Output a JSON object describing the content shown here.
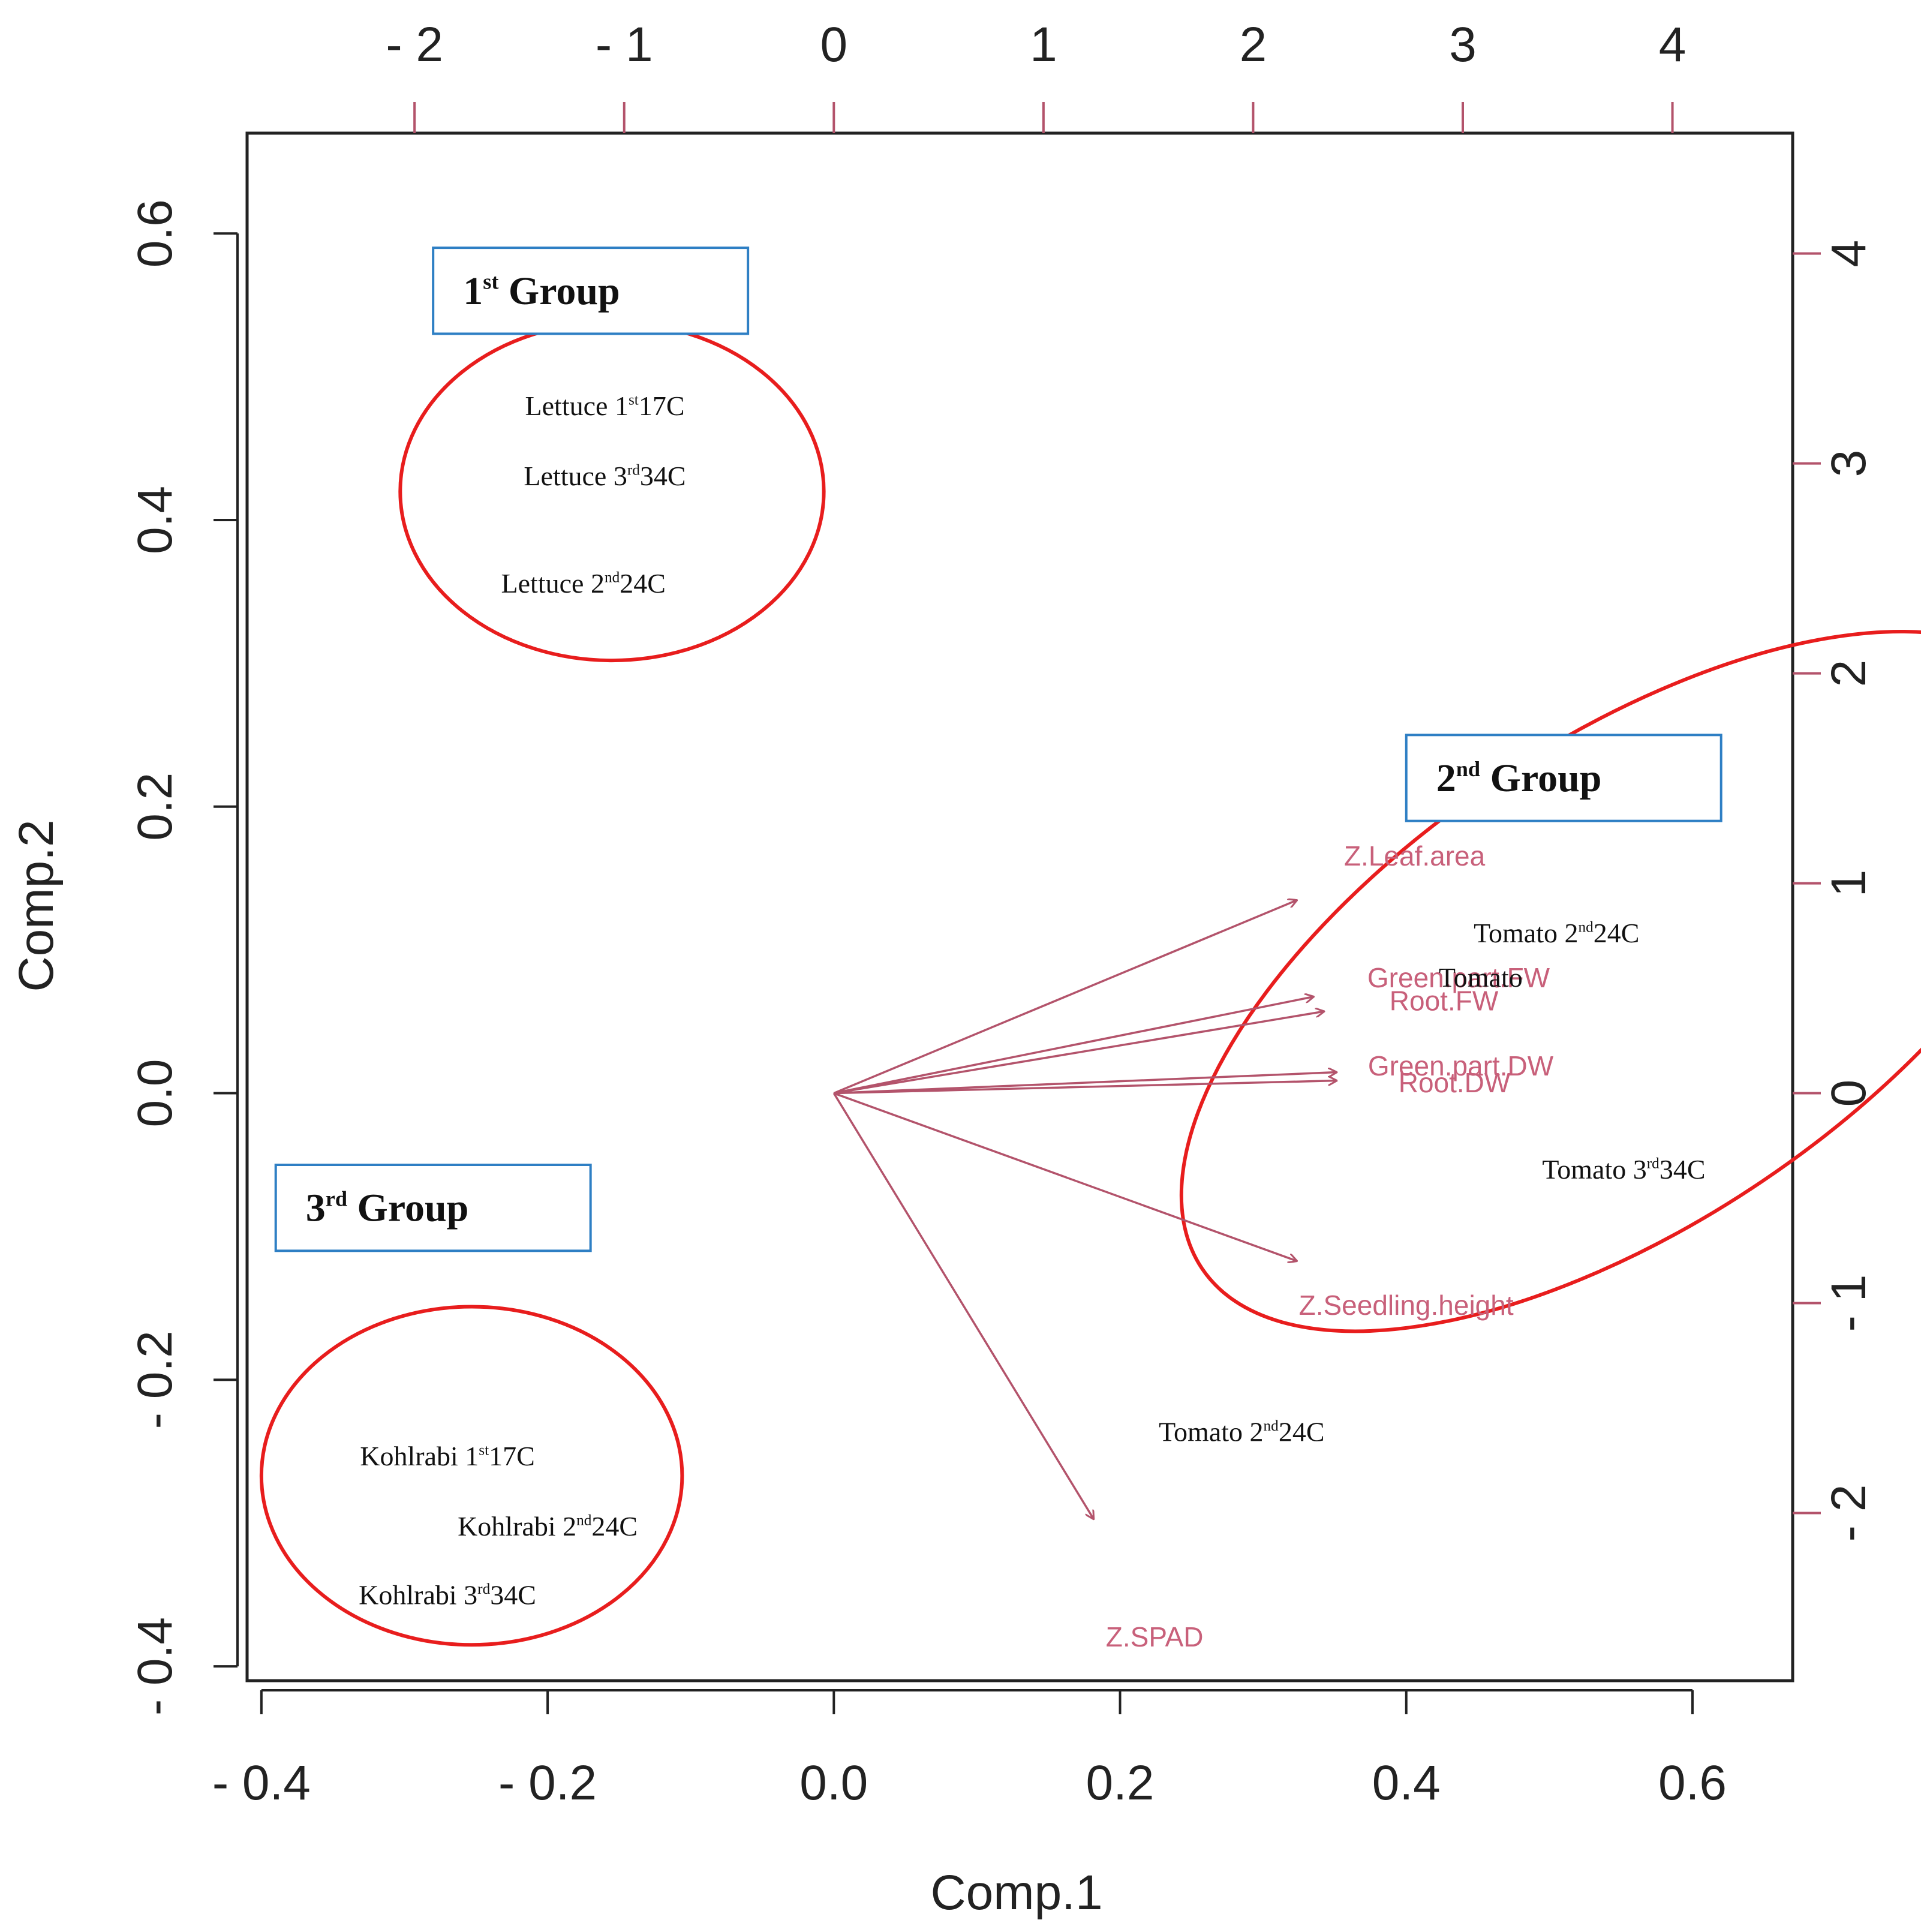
{
  "chart_data": {
    "type": "scatter",
    "subtype": "pca-biplot",
    "xlabel": "Comp.1",
    "ylabel": "Comp.2",
    "xlim": [
      -0.41,
      0.67
    ],
    "ylim": [
      -0.41,
      0.67
    ],
    "x_ticks": [
      {
        "value": -0.4,
        "label": "- 0.4"
      },
      {
        "value": -0.2,
        "label": "- 0.2"
      },
      {
        "value": 0.0,
        "label": "0.0"
      },
      {
        "value": 0.2,
        "label": "0.2"
      },
      {
        "value": 0.4,
        "label": "0.4"
      },
      {
        "value": 0.6,
        "label": "0.6"
      }
    ],
    "y_ticks": [
      {
        "value": -0.4,
        "label": "- 0.4"
      },
      {
        "value": -0.2,
        "label": "- 0.2"
      },
      {
        "value": 0.0,
        "label": "0.0"
      },
      {
        "value": 0.2,
        "label": "0.2"
      },
      {
        "value": 0.4,
        "label": "0.4"
      },
      {
        "value": 0.6,
        "label": "0.6"
      }
    ],
    "top_ticks": [
      {
        "value": -2,
        "label": "- 2"
      },
      {
        "value": -1,
        "label": "- 1"
      },
      {
        "value": 0,
        "label": "0"
      },
      {
        "value": 1,
        "label": "1"
      },
      {
        "value": 2,
        "label": "2"
      },
      {
        "value": 3,
        "label": "3"
      },
      {
        "value": 4,
        "label": "4"
      }
    ],
    "right_ticks": [
      {
        "value": 4,
        "label": "4"
      },
      {
        "value": 3,
        "label": "3"
      },
      {
        "value": 2,
        "label": "2"
      },
      {
        "value": 1,
        "label": "1"
      },
      {
        "value": 0,
        "label": "0"
      },
      {
        "value": -1,
        "label": "- 1"
      },
      {
        "value": -2,
        "label": "- 2"
      }
    ],
    "observations": [
      {
        "label": "Lettuce 1st17C",
        "main": "Lettuce 1",
        "sup": "st",
        "rest": "17C",
        "x": -0.16,
        "y": 0.48
      },
      {
        "label": "Lettuce 3rd34C",
        "main": "Lettuce 3",
        "sup": "rd",
        "rest": "34C",
        "x": -0.16,
        "y": 0.431
      },
      {
        "label": "Lettuce 2nd24C",
        "main": "Lettuce 2",
        "sup": "nd",
        "rest": "24C",
        "x": -0.175,
        "y": 0.356
      },
      {
        "label": "Tomato 2nd24C",
        "main": "Tomato 2",
        "sup": "nd",
        "rest": "24C",
        "x": 0.505,
        "y": 0.112
      },
      {
        "label": "Tomato",
        "main": "Tomato",
        "sup": "",
        "rest": "",
        "x": 0.452,
        "y": 0.081
      },
      {
        "label": "Tomato 3rd34C",
        "main": "Tomato 3",
        "sup": "rd",
        "rest": "34C",
        "x": 0.552,
        "y": -0.053
      },
      {
        "label": "Tomato 2nd24C",
        "main": "Tomato 2",
        "sup": "nd",
        "rest": "24C",
        "x": 0.285,
        "y": -0.236
      },
      {
        "label": "Kohlrabi 1st17C",
        "main": "Kohlrabi 1",
        "sup": "st",
        "rest": "17C",
        "x": -0.27,
        "y": -0.253
      },
      {
        "label": "Kohlrabi 2nd24C",
        "main": "Kohlrabi 2",
        "sup": "nd",
        "rest": "24C",
        "x": -0.2,
        "y": -0.302
      },
      {
        "label": "Kohlrabi 3rd34C",
        "main": "Kohlrabi 3",
        "sup": "rd",
        "rest": "34C",
        "x": -0.27,
        "y": -0.35
      }
    ],
    "loadings": [
      {
        "name": "Z.Leaf.area",
        "x": 2.21,
        "y": 0.92,
        "label_x": 2.77,
        "label_y": 1.13
      },
      {
        "name": "Green.part.FW",
        "x": 2.29,
        "y": 0.46,
        "label_x": 2.98,
        "label_y": 0.55
      },
      {
        "name": "Root.FW",
        "x": 2.34,
        "y": 0.39,
        "label_x": 2.91,
        "label_y": 0.44
      },
      {
        "name": "Green.part.DW",
        "x": 2.4,
        "y": 0.1,
        "label_x": 2.99,
        "label_y": 0.13
      },
      {
        "name": "Root.DW",
        "x": 2.4,
        "y": 0.06,
        "label_x": 2.96,
        "label_y": 0.05
      },
      {
        "name": "Z.Seedling.height",
        "x": 2.21,
        "y": -0.8,
        "label_x": 2.73,
        "label_y": -1.01
      },
      {
        "name": "Z.SPAD",
        "x": 1.24,
        "y": -2.03,
        "label_x": 1.53,
        "label_y": -2.59
      }
    ],
    "groups": [
      {
        "main": "1",
        "sup": "st",
        "rest": " Group",
        "box": {
          "x0": -0.28,
          "x1": -0.06,
          "y0": 0.59,
          "y1": 0.53
        }
      },
      {
        "main": "2",
        "sup": "nd",
        "rest": " Group",
        "box": {
          "x0": 0.4,
          "x1": 0.62,
          "y0": 0.25,
          "y1": 0.19
        }
      },
      {
        "main": "3",
        "sup": "rd",
        "rest": " Group",
        "box": {
          "x0": -0.39,
          "x1": -0.17,
          "y0": -0.05,
          "y1": -0.11
        }
      }
    ],
    "ellipses": [
      {
        "cx": -0.155,
        "cy": 0.42,
        "rx": 0.148,
        "ry": 0.118,
        "rotate": 0
      },
      {
        "cx": 0.555,
        "cy": 0.078,
        "rx": 0.359,
        "ry": 0.168,
        "rotate": -34
      },
      {
        "cx": -0.253,
        "cy": -0.267,
        "rx": 0.147,
        "ry": 0.118,
        "rotate": 0
      }
    ],
    "colors": {
      "loading": "#b3536b",
      "loading_text": "#c8607a",
      "ellipse": "#e81d1d",
      "group_box": "#2e7fc4",
      "axis": "#222222",
      "top_right_ticks": "#b3536b"
    }
  }
}
